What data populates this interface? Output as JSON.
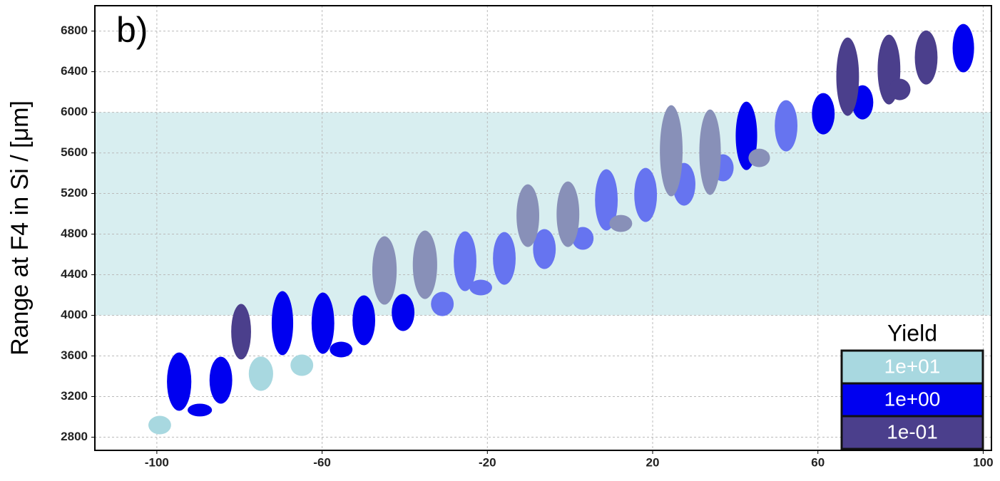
{
  "chart_data": {
    "type": "ellipse",
    "annotation": "b)",
    "ylabel": "Range at F4 in Si / [μm]",
    "xlim": [
      -115,
      102
    ],
    "ylim": [
      2670,
      7050
    ],
    "xticks": [
      -100,
      -60,
      -20,
      20,
      60,
      100
    ],
    "yticks": [
      2800,
      3200,
      3600,
      4000,
      4400,
      4800,
      5200,
      5600,
      6000,
      6400,
      6800
    ],
    "grid": true,
    "highlight": {
      "y": [
        4000,
        6000
      ],
      "color": "#d8eef0"
    },
    "legend_title": "Yield",
    "legend": "lower right",
    "series": [
      {
        "name": "1e+01",
        "color": "#a8d8e0",
        "x": [
          -99.3,
          -74.8,
          -64.9
        ],
        "values": [
          2919,
          3425,
          3509
        ],
        "widths": [
          5.5,
          5.9,
          5.5
        ],
        "heights": [
          182,
          337,
          211
        ]
      },
      {
        "name": "1e+00",
        "color": "#0000f0",
        "x": [
          -94.6,
          -89.6,
          -84.5,
          -69.6,
          -59.8,
          -55.4,
          -49.9,
          -40.4,
          42.7,
          61.3,
          70.8,
          95.2
        ],
        "values": [
          3347,
          3067,
          3361,
          3923,
          3923,
          3663,
          3951,
          4028,
          5768,
          5986,
          6098,
          6632
        ],
        "widths": [
          5.9,
          5.9,
          5.5,
          5.2,
          5.5,
          5.5,
          5.5,
          5.5,
          5.2,
          5.5,
          5.2,
          5.2
        ],
        "heights": [
          575,
          126,
          463,
          632,
          604,
          154,
          491,
          365,
          674,
          407,
          337,
          477
        ]
      },
      {
        "name": "1e-01",
        "color": "#4b3f8c",
        "x": [
          -79.6,
          67.2,
          77.2,
          79.8,
          86.2
        ],
        "values": [
          3839,
          6351,
          6421,
          6225,
          6540
        ],
        "widths": [
          4.8,
          5.5,
          5.5,
          5.2,
          5.5
        ],
        "heights": [
          547,
          772,
          688,
          211,
          533
        ]
      },
      {
        "color": "#6674f0",
        "x": [
          -30.9,
          -25.4,
          -21.6,
          -15.9,
          -6.2,
          3.1,
          8.8,
          18.3,
          27.6,
          37.0,
          52.3
        ],
        "values": [
          4112,
          4533,
          4274,
          4561,
          4653,
          4758,
          5137,
          5186,
          5291,
          5453,
          5867
        ],
        "widths": [
          5.5,
          5.5,
          5.5,
          5.5,
          5.5,
          5.2,
          5.5,
          5.5,
          5.5,
          5.2,
          5.5
        ],
        "heights": [
          239,
          589,
          154,
          519,
          393,
          225,
          604,
          533,
          421,
          267,
          505
        ]
      },
      {
        "color": "#8890b8",
        "x": [
          -44.9,
          -35.1,
          -10.2,
          -0.5,
          12.3,
          24.5,
          33.9,
          45.8
        ],
        "values": [
          4442,
          4498,
          4982,
          4996,
          4905,
          5621,
          5607,
          5551
        ],
        "widths": [
          5.9,
          5.9,
          5.5,
          5.5,
          5.5,
          5.5,
          5.2,
          5.2
        ],
        "heights": [
          674,
          674,
          618,
          646,
          168,
          898,
          842,
          182
        ]
      }
    ]
  }
}
